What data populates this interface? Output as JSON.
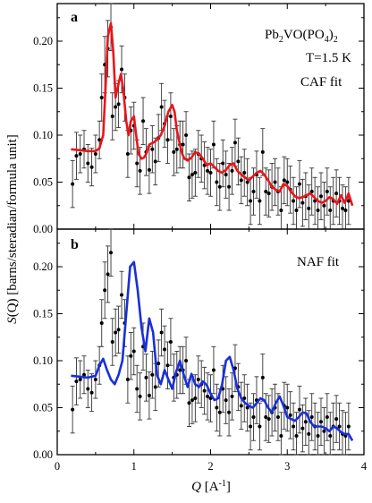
{
  "chart_data": [
    {
      "type": "scatter",
      "panel": "a",
      "annotations": [
        {
          "text": "Pb",
          "sub": "2",
          "text2": "VO(PO",
          "sub2": "4",
          "text3": ")",
          "sub3": "2"
        },
        {
          "text": "T=1.5 K"
        },
        {
          "text": "CAF fit"
        }
      ],
      "xlim": [
        0,
        4
      ],
      "ylim": [
        0,
        0.24
      ],
      "xticks": [
        0,
        1,
        2,
        3,
        4
      ],
      "yticks": [
        "0.00",
        "0.05",
        "0.10",
        "0.15",
        "0.20"
      ],
      "yticks_values": [
        0,
        0.05,
        0.1,
        0.15,
        0.2
      ],
      "fit_color": "#e8161b",
      "fit_x": [
        0.18,
        0.3,
        0.4,
        0.5,
        0.55,
        0.6,
        0.63,
        0.66,
        0.7,
        0.73,
        0.76,
        0.8,
        0.83,
        0.86,
        0.9,
        0.93,
        0.96,
        1.0,
        1.03,
        1.06,
        1.1,
        1.13,
        1.16,
        1.2,
        1.25,
        1.3,
        1.35,
        1.4,
        1.45,
        1.5,
        1.53,
        1.56,
        1.6,
        1.63,
        1.66,
        1.7,
        1.75,
        1.8,
        1.85,
        1.9,
        1.95,
        2.0,
        2.05,
        2.1,
        2.15,
        2.2,
        2.25,
        2.3,
        2.35,
        2.4,
        2.45,
        2.5,
        2.55,
        2.6,
        2.65,
        2.7,
        2.75,
        2.8,
        2.85,
        2.9,
        2.95,
        3.0,
        3.05,
        3.1,
        3.15,
        3.2,
        3.25,
        3.3,
        3.35,
        3.4,
        3.45,
        3.5,
        3.55,
        3.6,
        3.65,
        3.7,
        3.75,
        3.8,
        3.85
      ],
      "fit_y": [
        0.085,
        0.084,
        0.083,
        0.083,
        0.086,
        0.1,
        0.15,
        0.205,
        0.219,
        0.19,
        0.14,
        0.155,
        0.165,
        0.15,
        0.115,
        0.1,
        0.115,
        0.12,
        0.1,
        0.08,
        0.075,
        0.076,
        0.08,
        0.09,
        0.092,
        0.095,
        0.1,
        0.11,
        0.125,
        0.132,
        0.125,
        0.105,
        0.09,
        0.08,
        0.075,
        0.073,
        0.076,
        0.082,
        0.08,
        0.075,
        0.068,
        0.07,
        0.066,
        0.062,
        0.06,
        0.063,
        0.068,
        0.07,
        0.062,
        0.058,
        0.055,
        0.052,
        0.056,
        0.06,
        0.062,
        0.058,
        0.052,
        0.045,
        0.042,
        0.04,
        0.048,
        0.046,
        0.04,
        0.035,
        0.033,
        0.034,
        0.036,
        0.038,
        0.034,
        0.03,
        0.028,
        0.03,
        0.034,
        0.032,
        0.027,
        0.036,
        0.028,
        0.038,
        0.025
      ],
      "points": [
        [
          0.2,
          0.048,
          0.025
        ],
        [
          0.25,
          0.078,
          0.025
        ],
        [
          0.3,
          0.08,
          0.02
        ],
        [
          0.35,
          0.085,
          0.02
        ],
        [
          0.4,
          0.07,
          0.02
        ],
        [
          0.45,
          0.066,
          0.02
        ],
        [
          0.5,
          0.08,
          0.02
        ],
        [
          0.55,
          0.095,
          0.02
        ],
        [
          0.58,
          0.14,
          0.025
        ],
        [
          0.62,
          0.175,
          0.03
        ],
        [
          0.66,
          0.192,
          0.03
        ],
        [
          0.7,
          0.215,
          0.025
        ],
        [
          0.72,
          0.12,
          0.025
        ],
        [
          0.76,
          0.13,
          0.025
        ],
        [
          0.8,
          0.133,
          0.025
        ],
        [
          0.84,
          0.17,
          0.025
        ],
        [
          0.88,
          0.14,
          0.025
        ],
        [
          0.92,
          0.08,
          0.025
        ],
        [
          0.96,
          0.105,
          0.025
        ],
        [
          1.0,
          0.11,
          0.025
        ],
        [
          1.04,
          0.07,
          0.025
        ],
        [
          1.08,
          0.062,
          0.025
        ],
        [
          1.12,
          0.115,
          0.025
        ],
        [
          1.16,
          0.082,
          0.025
        ],
        [
          1.2,
          0.063,
          0.025
        ],
        [
          1.24,
          0.085,
          0.025
        ],
        [
          1.28,
          0.072,
          0.025
        ],
        [
          1.32,
          0.097,
          0.025
        ],
        [
          1.36,
          0.13,
          0.025
        ],
        [
          1.4,
          0.112,
          0.025
        ],
        [
          1.44,
          0.095,
          0.025
        ],
        [
          1.48,
          0.12,
          0.025
        ],
        [
          1.52,
          0.082,
          0.025
        ],
        [
          1.56,
          0.085,
          0.025
        ],
        [
          1.6,
          0.09,
          0.025
        ],
        [
          1.64,
          0.09,
          0.025
        ],
        [
          1.68,
          0.1,
          0.025
        ],
        [
          1.72,
          0.055,
          0.025
        ],
        [
          1.76,
          0.058,
          0.025
        ],
        [
          1.8,
          0.06,
          0.025
        ],
        [
          1.84,
          0.08,
          0.025
        ],
        [
          1.88,
          0.075,
          0.025
        ],
        [
          1.92,
          0.068,
          0.025
        ],
        [
          1.96,
          0.062,
          0.025
        ],
        [
          2.0,
          0.06,
          0.025
        ],
        [
          2.04,
          0.09,
          0.025
        ],
        [
          2.08,
          0.05,
          0.025
        ],
        [
          2.12,
          0.045,
          0.025
        ],
        [
          2.16,
          0.07,
          0.025
        ],
        [
          2.2,
          0.058,
          0.025
        ],
        [
          2.24,
          0.045,
          0.025
        ],
        [
          2.28,
          0.062,
          0.025
        ],
        [
          2.32,
          0.092,
          0.025
        ],
        [
          2.36,
          0.072,
          0.025
        ],
        [
          2.4,
          0.052,
          0.025
        ],
        [
          2.44,
          0.06,
          0.025
        ],
        [
          2.48,
          0.05,
          0.025
        ],
        [
          2.52,
          0.03,
          0.025
        ],
        [
          2.56,
          0.04,
          0.025
        ],
        [
          2.6,
          0.058,
          0.025
        ],
        [
          2.64,
          0.03,
          0.025
        ],
        [
          2.68,
          0.082,
          0.025
        ],
        [
          2.72,
          0.04,
          0.025
        ],
        [
          2.76,
          0.038,
          0.025
        ],
        [
          2.8,
          0.045,
          0.025
        ],
        [
          2.84,
          0.05,
          0.025
        ],
        [
          2.88,
          0.04,
          0.025
        ],
        [
          2.92,
          0.02,
          0.025
        ],
        [
          2.96,
          0.052,
          0.025
        ],
        [
          3.0,
          0.05,
          0.025
        ],
        [
          3.04,
          0.042,
          0.025
        ],
        [
          3.08,
          0.03,
          0.025
        ],
        [
          3.12,
          0.02,
          0.025
        ],
        [
          3.16,
          0.048,
          0.025
        ],
        [
          3.2,
          0.028,
          0.025
        ],
        [
          3.24,
          0.035,
          0.025
        ],
        [
          3.28,
          0.022,
          0.025
        ],
        [
          3.32,
          0.04,
          0.025
        ],
        [
          3.36,
          0.03,
          0.025
        ],
        [
          3.4,
          0.02,
          0.025
        ],
        [
          3.44,
          0.035,
          0.025
        ],
        [
          3.48,
          0.025,
          0.025
        ],
        [
          3.52,
          0.04,
          0.025
        ],
        [
          3.56,
          0.02,
          0.025
        ],
        [
          3.6,
          0.03,
          0.025
        ],
        [
          3.64,
          0.038,
          0.025
        ],
        [
          3.68,
          0.03,
          0.025
        ],
        [
          3.72,
          0.022,
          0.025
        ],
        [
          3.76,
          0.02,
          0.025
        ],
        [
          3.8,
          0.03,
          0.025
        ]
      ]
    },
    {
      "type": "scatter",
      "panel": "b",
      "annotations": [
        {
          "text": "NAF fit"
        }
      ],
      "xlim": [
        0,
        4
      ],
      "ylim": [
        0,
        0.24
      ],
      "xticks": [
        0,
        1,
        2,
        3,
        4
      ],
      "yticks": [
        "0.00",
        "0.05",
        "0.10",
        "0.15",
        "0.20"
      ],
      "yticks_values": [
        0,
        0.05,
        0.1,
        0.15,
        0.2
      ],
      "fit_color": "#1a2fd8",
      "fit_x": [
        0.18,
        0.3,
        0.4,
        0.5,
        0.55,
        0.6,
        0.65,
        0.7,
        0.75,
        0.8,
        0.85,
        0.9,
        0.95,
        1.0,
        1.05,
        1.1,
        1.15,
        1.2,
        1.25,
        1.3,
        1.35,
        1.4,
        1.45,
        1.5,
        1.55,
        1.6,
        1.65,
        1.7,
        1.75,
        1.8,
        1.85,
        1.9,
        1.95,
        2.0,
        2.05,
        2.1,
        2.15,
        2.2,
        2.25,
        2.3,
        2.35,
        2.4,
        2.45,
        2.5,
        2.55,
        2.6,
        2.65,
        2.7,
        2.75,
        2.8,
        2.85,
        2.9,
        2.95,
        3.0,
        3.05,
        3.1,
        3.15,
        3.2,
        3.25,
        3.3,
        3.35,
        3.4,
        3.45,
        3.5,
        3.55,
        3.6,
        3.65,
        3.7,
        3.75,
        3.8,
        3.85
      ],
      "fit_y": [
        0.084,
        0.083,
        0.082,
        0.084,
        0.095,
        0.102,
        0.09,
        0.08,
        0.075,
        0.085,
        0.1,
        0.15,
        0.2,
        0.205,
        0.175,
        0.135,
        0.11,
        0.145,
        0.13,
        0.085,
        0.075,
        0.09,
        0.08,
        0.07,
        0.088,
        0.1,
        0.085,
        0.072,
        0.086,
        0.075,
        0.072,
        0.078,
        0.074,
        0.065,
        0.058,
        0.06,
        0.075,
        0.1,
        0.104,
        0.09,
        0.07,
        0.06,
        0.055,
        0.052,
        0.05,
        0.055,
        0.06,
        0.058,
        0.05,
        0.045,
        0.055,
        0.062,
        0.052,
        0.04,
        0.038,
        0.036,
        0.04,
        0.045,
        0.044,
        0.035,
        0.03,
        0.03,
        0.03,
        0.028,
        0.025,
        0.03,
        0.028,
        0.024,
        0.022,
        0.022,
        0.015
      ],
      "points": [
        [
          0.2,
          0.048,
          0.025
        ],
        [
          0.25,
          0.078,
          0.025
        ],
        [
          0.3,
          0.08,
          0.02
        ],
        [
          0.35,
          0.085,
          0.02
        ],
        [
          0.4,
          0.07,
          0.02
        ],
        [
          0.45,
          0.066,
          0.02
        ],
        [
          0.5,
          0.08,
          0.02
        ],
        [
          0.55,
          0.095,
          0.02
        ],
        [
          0.58,
          0.14,
          0.025
        ],
        [
          0.62,
          0.175,
          0.03
        ],
        [
          0.66,
          0.192,
          0.03
        ],
        [
          0.7,
          0.215,
          0.025
        ],
        [
          0.72,
          0.12,
          0.025
        ],
        [
          0.76,
          0.13,
          0.025
        ],
        [
          0.8,
          0.133,
          0.025
        ],
        [
          0.84,
          0.17,
          0.025
        ],
        [
          0.88,
          0.14,
          0.025
        ],
        [
          0.92,
          0.08,
          0.025
        ],
        [
          0.96,
          0.105,
          0.025
        ],
        [
          1.0,
          0.11,
          0.025
        ],
        [
          1.04,
          0.07,
          0.025
        ],
        [
          1.08,
          0.062,
          0.025
        ],
        [
          1.12,
          0.115,
          0.025
        ],
        [
          1.16,
          0.082,
          0.025
        ],
        [
          1.2,
          0.063,
          0.025
        ],
        [
          1.24,
          0.085,
          0.025
        ],
        [
          1.28,
          0.072,
          0.025
        ],
        [
          1.32,
          0.097,
          0.025
        ],
        [
          1.36,
          0.13,
          0.025
        ],
        [
          1.4,
          0.112,
          0.025
        ],
        [
          1.44,
          0.095,
          0.025
        ],
        [
          1.48,
          0.12,
          0.025
        ],
        [
          1.52,
          0.082,
          0.025
        ],
        [
          1.56,
          0.085,
          0.025
        ],
        [
          1.6,
          0.09,
          0.025
        ],
        [
          1.64,
          0.09,
          0.025
        ],
        [
          1.68,
          0.1,
          0.025
        ],
        [
          1.72,
          0.055,
          0.025
        ],
        [
          1.76,
          0.058,
          0.025
        ],
        [
          1.8,
          0.06,
          0.025
        ],
        [
          1.84,
          0.08,
          0.025
        ],
        [
          1.88,
          0.075,
          0.025
        ],
        [
          1.92,
          0.068,
          0.025
        ],
        [
          1.96,
          0.062,
          0.025
        ],
        [
          2.0,
          0.06,
          0.025
        ],
        [
          2.04,
          0.09,
          0.025
        ],
        [
          2.08,
          0.05,
          0.025
        ],
        [
          2.12,
          0.045,
          0.025
        ],
        [
          2.16,
          0.07,
          0.025
        ],
        [
          2.2,
          0.058,
          0.025
        ],
        [
          2.24,
          0.045,
          0.025
        ],
        [
          2.28,
          0.062,
          0.025
        ],
        [
          2.32,
          0.092,
          0.025
        ],
        [
          2.36,
          0.072,
          0.025
        ],
        [
          2.4,
          0.052,
          0.025
        ],
        [
          2.44,
          0.06,
          0.025
        ],
        [
          2.48,
          0.05,
          0.025
        ],
        [
          2.52,
          0.03,
          0.025
        ],
        [
          2.56,
          0.04,
          0.025
        ],
        [
          2.6,
          0.058,
          0.025
        ],
        [
          2.64,
          0.03,
          0.025
        ],
        [
          2.68,
          0.082,
          0.025
        ],
        [
          2.72,
          0.04,
          0.025
        ],
        [
          2.76,
          0.038,
          0.025
        ],
        [
          2.8,
          0.045,
          0.025
        ],
        [
          2.84,
          0.05,
          0.025
        ],
        [
          2.88,
          0.04,
          0.025
        ],
        [
          2.92,
          0.02,
          0.025
        ],
        [
          2.96,
          0.052,
          0.025
        ],
        [
          3.0,
          0.05,
          0.025
        ],
        [
          3.04,
          0.042,
          0.025
        ],
        [
          3.08,
          0.03,
          0.025
        ],
        [
          3.12,
          0.02,
          0.025
        ],
        [
          3.16,
          0.048,
          0.025
        ],
        [
          3.2,
          0.028,
          0.025
        ],
        [
          3.24,
          0.035,
          0.025
        ],
        [
          3.28,
          0.022,
          0.025
        ],
        [
          3.32,
          0.04,
          0.025
        ],
        [
          3.36,
          0.03,
          0.025
        ],
        [
          3.4,
          0.02,
          0.025
        ],
        [
          3.44,
          0.035,
          0.025
        ],
        [
          3.48,
          0.025,
          0.025
        ],
        [
          3.52,
          0.04,
          0.025
        ],
        [
          3.56,
          0.02,
          0.025
        ],
        [
          3.6,
          0.03,
          0.025
        ],
        [
          3.64,
          0.038,
          0.025
        ],
        [
          3.68,
          0.03,
          0.025
        ],
        [
          3.72,
          0.022,
          0.025
        ],
        [
          3.76,
          0.02,
          0.025
        ],
        [
          3.8,
          0.03,
          0.025
        ]
      ]
    }
  ],
  "labels": {
    "panel_a": "a",
    "panel_b": "b",
    "formula_pb": "Pb",
    "formula_sub2": "2",
    "formula_vo": "VO(PO",
    "formula_sub4": "4",
    "formula_close": ")",
    "formula_sub2b": "2",
    "temp": "T=1.5 K",
    "caf": "CAF fit",
    "naf": "NAF fit",
    "ylabel_italic": "S",
    "ylabel_rest": "(Q) [barns/steradian/formula unit]",
    "ylabel_q": "Q",
    "xlabel_italic": "Q",
    "xlabel_rest": " [A",
    "xlabel_sup": "-1",
    "xlabel_close": "]"
  }
}
